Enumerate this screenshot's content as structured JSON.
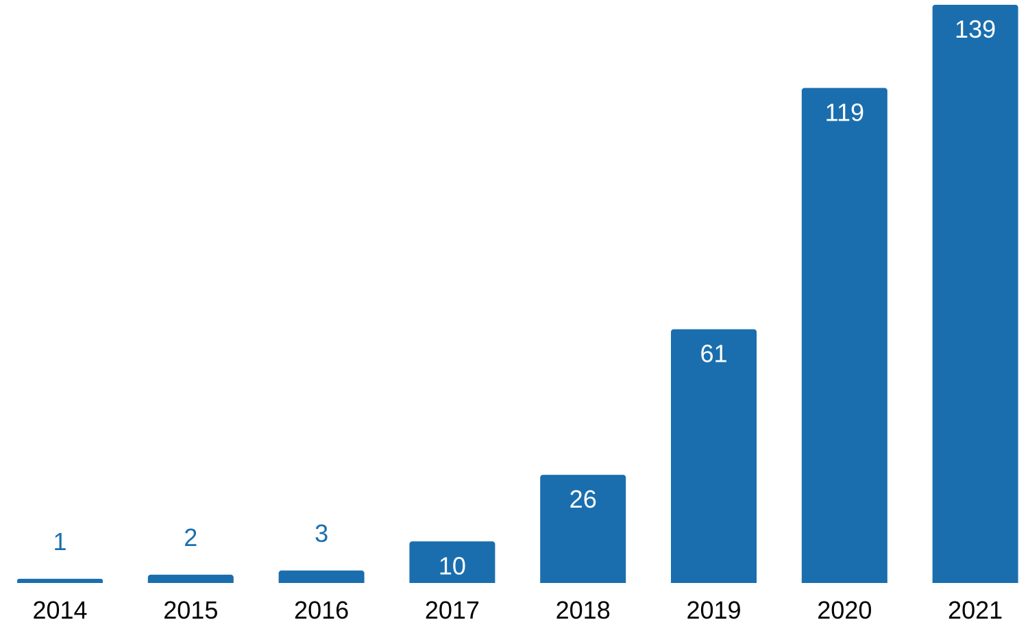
{
  "chart_data": {
    "type": "bar",
    "title": "",
    "xlabel": "",
    "ylabel": "",
    "categories": [
      "2014",
      "2015",
      "2016",
      "2017",
      "2018",
      "2019",
      "2020",
      "2021"
    ],
    "values": [
      1,
      2,
      3,
      10,
      26,
      61,
      119,
      139
    ],
    "ylim": [
      0,
      139
    ],
    "grid": false,
    "legend": "none",
    "colors": {
      "bar": "#1a6eae",
      "label_inside": "#ffffff",
      "label_outside": "#1a6eae",
      "tick_label": "#000000"
    }
  }
}
